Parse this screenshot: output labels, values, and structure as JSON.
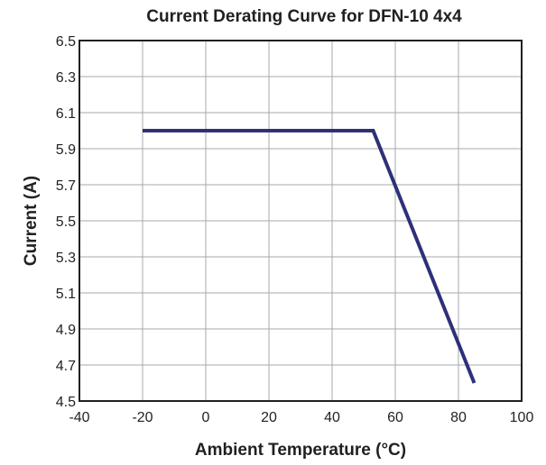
{
  "chart_data": {
    "type": "line",
    "title": "Current Derating Curve for DFN-10 4x4",
    "xlabel": "Ambient Temperature (°C)",
    "ylabel": "Current (A)",
    "xlim": [
      -40,
      100
    ],
    "ylim": [
      4.5,
      6.5
    ],
    "xticks": [
      "-40",
      "-20",
      "0",
      "20",
      "40",
      "60",
      "80",
      "100"
    ],
    "yticks": [
      "4.5",
      "4.7",
      "4.9",
      "5.1",
      "5.3",
      "5.5",
      "5.7",
      "5.9",
      "6.1",
      "6.3",
      "6.5"
    ],
    "grid": true,
    "series": [
      {
        "color": "#2e3177",
        "x": [
          -20,
          53,
          85
        ],
        "y": [
          6.0,
          6.0,
          4.6
        ]
      }
    ]
  }
}
